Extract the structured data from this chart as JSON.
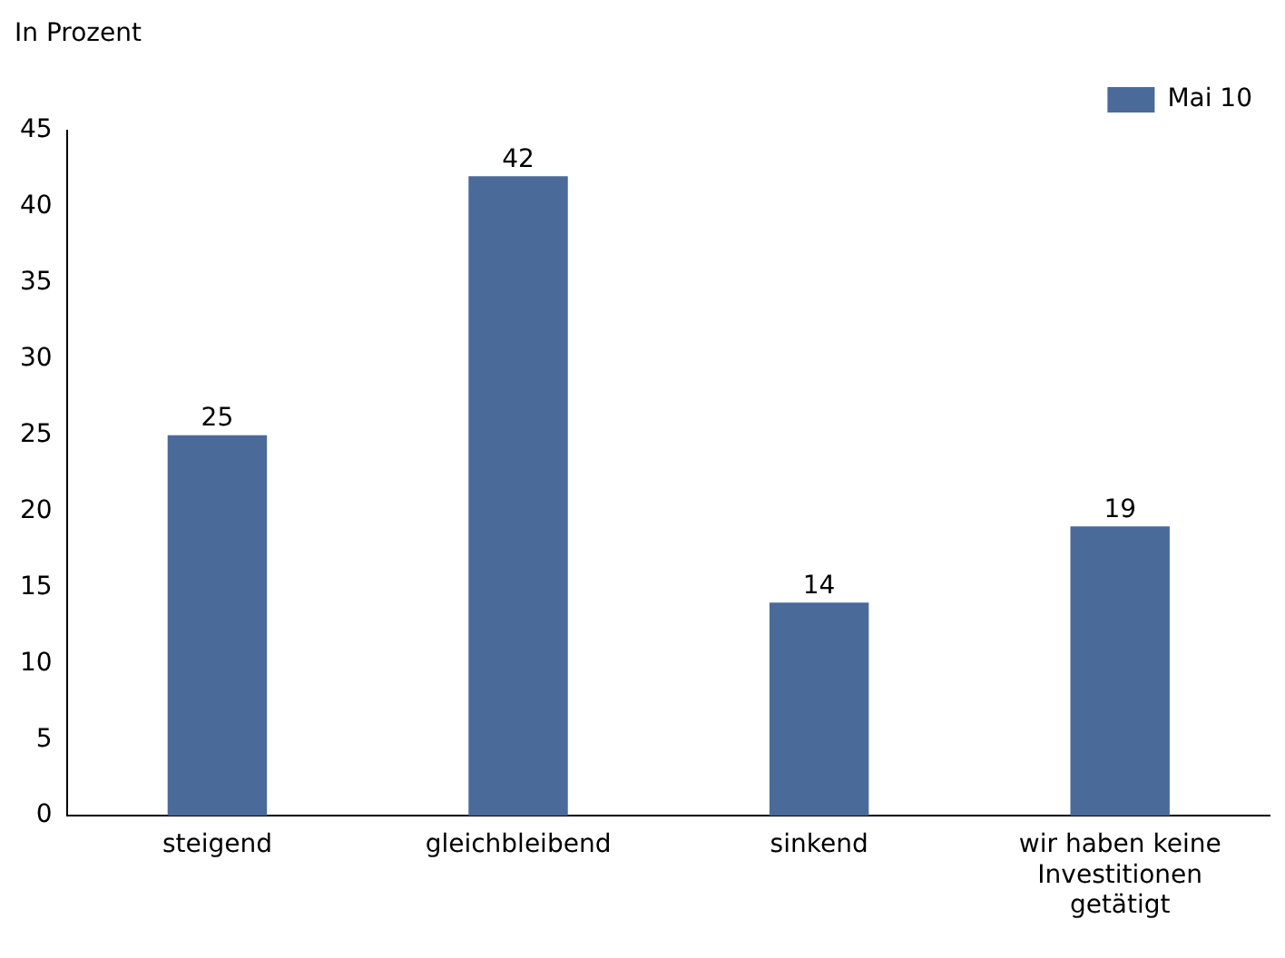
{
  "chart_data": {
    "type": "bar",
    "ylabel": "In Prozent",
    "categories": [
      "steigend",
      "gleichbleibend",
      "sinkend",
      "wir haben keine Investitionen getätigt"
    ],
    "series": [
      {
        "name": "Mai 10",
        "color": "#4a6a9a",
        "values": [
          25,
          42,
          14,
          19
        ]
      }
    ],
    "ylim": [
      0,
      45
    ],
    "yticks": [
      0,
      5,
      10,
      15,
      20,
      25,
      30,
      35,
      40,
      45
    ],
    "grid": false,
    "legend": "top right",
    "data_labels": true
  }
}
